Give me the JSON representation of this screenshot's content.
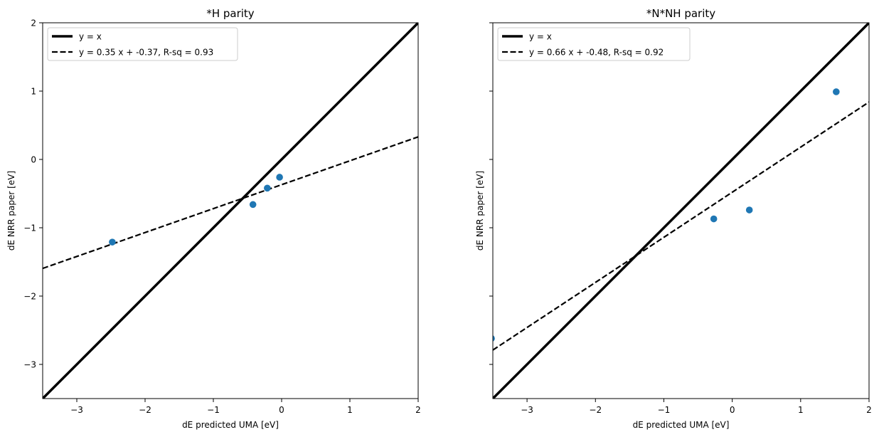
{
  "chart_data": [
    {
      "type": "scatter",
      "title": "*H parity",
      "xlabel": "dE predicted UMA [eV]",
      "ylabel": "dE NRR paper [eV]",
      "xlim": [
        -3.5,
        2
      ],
      "ylim": [
        -3.5,
        2
      ],
      "x_ticks": [
        -3,
        -2,
        -1,
        0,
        1,
        2
      ],
      "y_ticks": [
        -3,
        -2,
        -1,
        0,
        1,
        2
      ],
      "x_tick_labels": [
        "−3",
        "−2",
        "−1",
        "0",
        "1",
        "2"
      ],
      "y_tick_labels": [
        "−3",
        "−2",
        "−1",
        "0",
        "1",
        "2"
      ],
      "show_y_tick_labels": true,
      "grid": false,
      "legend_position": "upper-left",
      "points": [
        {
          "x": -2.48,
          "y": -1.21
        },
        {
          "x": -0.42,
          "y": -0.66
        },
        {
          "x": -0.21,
          "y": -0.42
        },
        {
          "x": -0.03,
          "y": -0.26
        }
      ],
      "lines": [
        {
          "label": "y = x",
          "slope": 1,
          "intercept": 0,
          "style": "solid"
        },
        {
          "label": "y = 0.35 x + -0.37, R-sq = 0.93",
          "slope": 0.35,
          "intercept": -0.37,
          "style": "dashed"
        }
      ],
      "colors": {
        "points": "#1f77b4",
        "lines": "#000000"
      }
    },
    {
      "type": "scatter",
      "title": "*N*NH parity",
      "xlabel": "dE predicted UMA [eV]",
      "ylabel": "dE NRR paper [eV]",
      "xlim": [
        -3.5,
        2
      ],
      "ylim": [
        -3.5,
        2
      ],
      "x_ticks": [
        -3,
        -2,
        -1,
        0,
        1,
        2
      ],
      "y_ticks": [
        -3,
        -2,
        -1,
        0,
        1,
        2
      ],
      "x_tick_labels": [
        "−3",
        "−2",
        "−1",
        "0",
        "1",
        "2"
      ],
      "y_tick_labels": [
        "",
        "",
        "",
        "",
        "",
        ""
      ],
      "show_y_tick_labels": false,
      "grid": false,
      "legend_position": "upper-left",
      "points": [
        {
          "x": -3.52,
          "y": -2.62
        },
        {
          "x": -0.27,
          "y": -0.87
        },
        {
          "x": 0.25,
          "y": -0.74
        },
        {
          "x": 1.52,
          "y": 0.99
        }
      ],
      "lines": [
        {
          "label": "y = x",
          "slope": 1,
          "intercept": 0,
          "style": "solid"
        },
        {
          "label": "y = 0.66 x + -0.48, R-sq = 0.92",
          "slope": 0.66,
          "intercept": -0.48,
          "style": "dashed"
        }
      ],
      "colors": {
        "points": "#1f77b4",
        "lines": "#000000"
      }
    }
  ]
}
